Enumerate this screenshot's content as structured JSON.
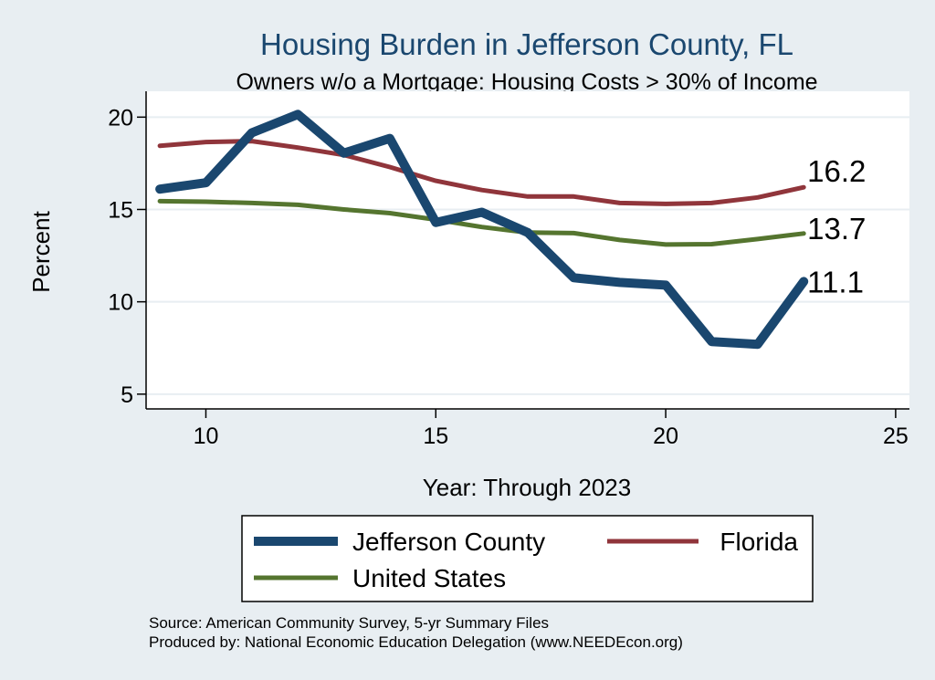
{
  "chart_data": {
    "type": "line",
    "title": "Housing Burden in Jefferson County, FL",
    "subtitle": "Owners w/o a Mortgage: Housing Costs > 30% of Income",
    "xlabel": "Year: Through 2023",
    "ylabel": "Percent",
    "xlim": [
      8.7,
      25.3
    ],
    "ylim": [
      4.2,
      21.4
    ],
    "xticks": [
      10,
      15,
      20,
      25
    ],
    "yticks": [
      5,
      10,
      15,
      20
    ],
    "grid": true,
    "x": [
      9,
      10,
      11,
      12,
      13,
      14,
      15,
      16,
      17,
      18,
      19,
      20,
      21,
      22,
      23
    ],
    "series": [
      {
        "name": "Jefferson County",
        "color": "#1a476f",
        "values": [
          16.1,
          16.45,
          19.15,
          20.15,
          18.05,
          18.85,
          14.3,
          14.85,
          13.75,
          11.3,
          11.05,
          10.9,
          7.85,
          7.7,
          11.1
        ],
        "end_label": "11.1"
      },
      {
        "name": "Florida",
        "color": "#90353b",
        "values": [
          18.45,
          18.65,
          18.7,
          18.35,
          17.95,
          17.3,
          16.55,
          16.05,
          15.7,
          15.7,
          15.35,
          15.3,
          15.35,
          15.65,
          16.2
        ],
        "end_label": "16.2"
      },
      {
        "name": "United States",
        "color": "#55752f",
        "values": [
          15.45,
          15.42,
          15.35,
          15.25,
          15.0,
          14.8,
          14.45,
          14.05,
          13.75,
          13.72,
          13.35,
          13.1,
          13.12,
          13.4,
          13.7
        ],
        "end_label": "13.7"
      }
    ],
    "legend": {
      "position": "bottom",
      "order": [
        "Jefferson County",
        "Florida",
        "United States"
      ]
    },
    "note": {
      "line1": "Source: American Community Survey, 5-yr Summary Files",
      "line2": "Produced by: National Economic Education Delegation (www.NEEDEcon.org)"
    }
  }
}
